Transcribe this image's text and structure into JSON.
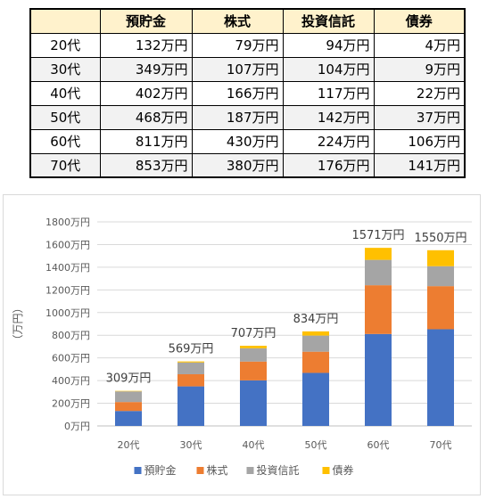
{
  "table": {
    "headers": [
      "",
      "預貯金",
      "株式",
      "投資信託",
      "債券"
    ],
    "rows": [
      [
        "20代",
        "132万円",
        "79万円",
        "94万円",
        "4万円"
      ],
      [
        "30代",
        "349万円",
        "107万円",
        "104万円",
        "9万円"
      ],
      [
        "40代",
        "402万円",
        "166万円",
        "117万円",
        "22万円"
      ],
      [
        "50代",
        "468万円",
        "187万円",
        "142万円",
        "37万円"
      ],
      [
        "60代",
        "811万円",
        "430万円",
        "224万円",
        "106万円"
      ],
      [
        "70代",
        "853万円",
        "380万円",
        "176万円",
        "141万円"
      ]
    ]
  },
  "chart_data": {
    "type": "bar",
    "stacked": true,
    "categories": [
      "20代",
      "30代",
      "40代",
      "50代",
      "60代",
      "70代"
    ],
    "series": [
      {
        "name": "預貯金",
        "values": [
          132,
          349,
          402,
          468,
          811,
          853
        ],
        "color": "#4472c4"
      },
      {
        "name": "株式",
        "values": [
          79,
          107,
          166,
          187,
          430,
          380
        ],
        "color": "#ed7d31"
      },
      {
        "name": "投資信託",
        "values": [
          94,
          104,
          117,
          142,
          224,
          176
        ],
        "color": "#a5a5a5"
      },
      {
        "name": "債券",
        "values": [
          4,
          9,
          22,
          37,
          106,
          141
        ],
        "color": "#ffc000"
      }
    ],
    "total_labels": [
      "309万円",
      "569万円",
      "707万円",
      "834万円",
      "1571万円",
      "1550万円"
    ],
    "ylabel": "（万円）",
    "ylim": [
      0,
      1800
    ],
    "yticks": [
      0,
      200,
      400,
      600,
      800,
      1000,
      1200,
      1400,
      1600,
      1800
    ],
    "ytick_labels": [
      "0万円",
      "200万円",
      "400万円",
      "600万円",
      "800万円",
      "1000万円",
      "1200万円",
      "1400万円",
      "1600万円",
      "1800万円"
    ],
    "grid": true,
    "legend_position": "bottom"
  }
}
